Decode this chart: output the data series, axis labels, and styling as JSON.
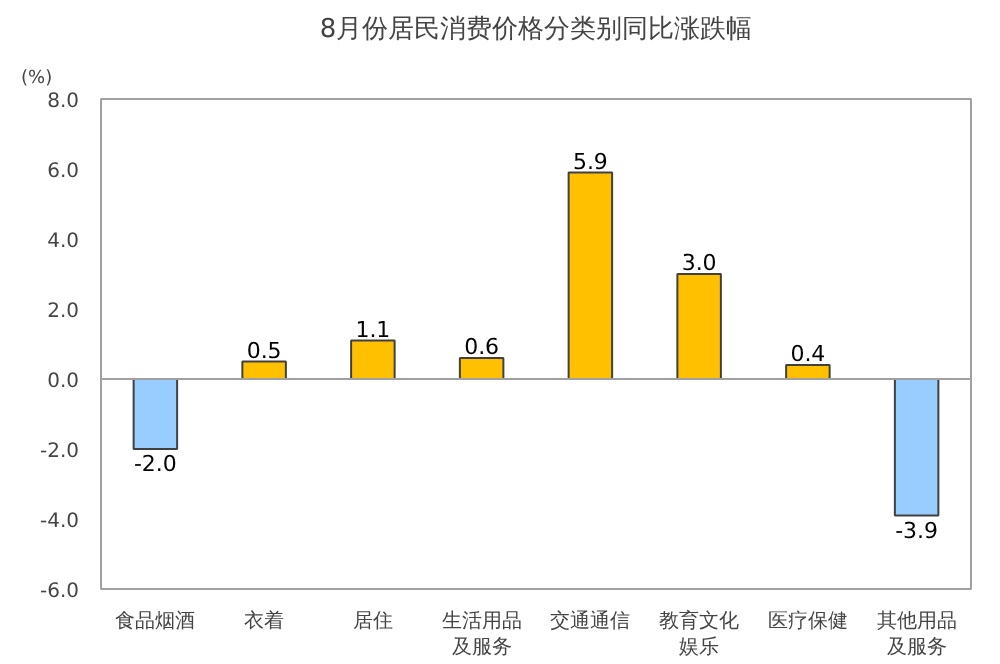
{
  "chart_data": {
    "type": "bar",
    "title": "8月份居民消费价格分类别同比涨跌幅",
    "ylabel": "(%)",
    "categories": [
      "食品烟酒",
      "衣着",
      "居住",
      "生活用品及服务",
      "交通通信",
      "教育文化娱乐",
      "医疗保健",
      "其他用品及服务"
    ],
    "values": [
      -2.0,
      0.5,
      1.1,
      0.6,
      5.9,
      3.0,
      0.4,
      -3.9
    ],
    "value_labels": [
      "-2.0",
      "0.5",
      "1.1",
      "0.6",
      "5.9",
      "3.0",
      "0.4",
      "-3.9"
    ],
    "colors": [
      "#99ccff",
      "#ffc000",
      "#ffc000",
      "#ffc000",
      "#ffc000",
      "#ffc000",
      "#ffc000",
      "#99ccff"
    ],
    "ylim": [
      -6,
      8
    ],
    "yticks": [
      {
        "value": -6,
        "label": "-6.0"
      },
      {
        "value": -4,
        "label": "-4.0"
      },
      {
        "value": -2,
        "label": "-2.0"
      },
      {
        "value": 0,
        "label": "0.0"
      },
      {
        "value": 2,
        "label": "2.0"
      },
      {
        "value": 4,
        "label": "4.0"
      },
      {
        "value": 6,
        "label": "6.0"
      },
      {
        "value": 8,
        "label": "8.0"
      }
    ]
  }
}
